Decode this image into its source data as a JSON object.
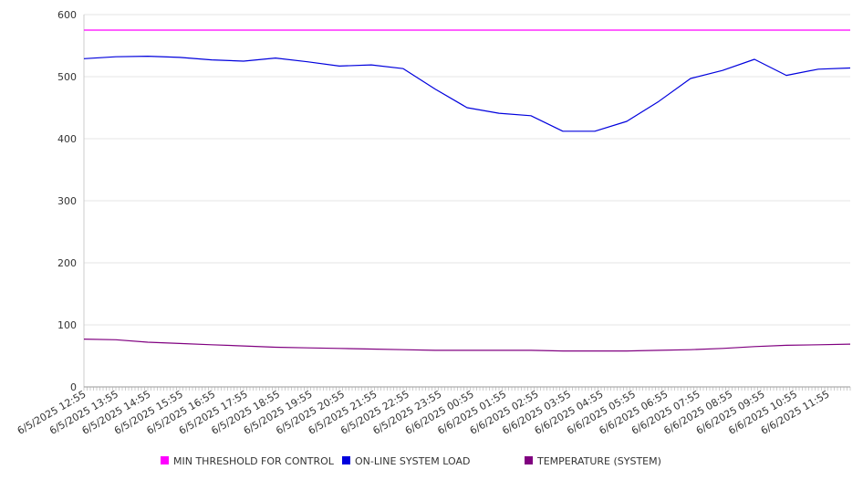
{
  "chart_data": {
    "type": "line",
    "title": "",
    "xlabel": "",
    "ylabel": "",
    "ylim": [
      0,
      600
    ],
    "yticks": [
      0,
      100,
      200,
      300,
      400,
      500,
      600
    ],
    "grid": "horizontal",
    "legend_position": "bottom",
    "x_tick_labels": [
      "6/5/2025 12:55",
      "6/5/2025 13:55",
      "6/5/2025 14:55",
      "6/5/2025 15:55",
      "6/5/2025 16:55",
      "6/5/2025 17:55",
      "6/5/2025 18:55",
      "6/5/2025 19:55",
      "6/5/2025 20:55",
      "6/5/2025 21:55",
      "6/5/2025 22:55",
      "6/5/2025 23:55",
      "6/6/2025 00:55",
      "6/6/2025 01:55",
      "6/6/2025 02:55",
      "6/6/2025 03:55",
      "6/6/2025 04:55",
      "6/6/2025 05:55",
      "6/6/2025 06:55",
      "6/6/2025 07:55",
      "6/6/2025 08:55",
      "6/6/2025 09:55",
      "6/6/2025 10:55",
      "6/6/2025 11:55"
    ],
    "series": [
      {
        "name": "MIN THRESHOLD FOR CONTROL",
        "color": "#ff00ff",
        "values": [
          575,
          575,
          575,
          575,
          575,
          575,
          575,
          575,
          575,
          575,
          575,
          575,
          575,
          575,
          575,
          575,
          575,
          575,
          575,
          575,
          575,
          575,
          575,
          575,
          575
        ]
      },
      {
        "name": "ON-LINE SYSTEM LOAD",
        "color": "#0000dd",
        "values": [
          529,
          532,
          533,
          531,
          527,
          525,
          530,
          524,
          517,
          519,
          513,
          480,
          450,
          441,
          437,
          412,
          412,
          428,
          460,
          497,
          510,
          528,
          502,
          512,
          514
        ]
      },
      {
        "name": "TEMPERATURE (SYSTEM)",
        "color": "#800080",
        "values": [
          77,
          76,
          72,
          70,
          68,
          66,
          64,
          63,
          62,
          61,
          60,
          59,
          59,
          59,
          59,
          58,
          58,
          58,
          59,
          60,
          62,
          65,
          67,
          68,
          69
        ]
      }
    ]
  }
}
